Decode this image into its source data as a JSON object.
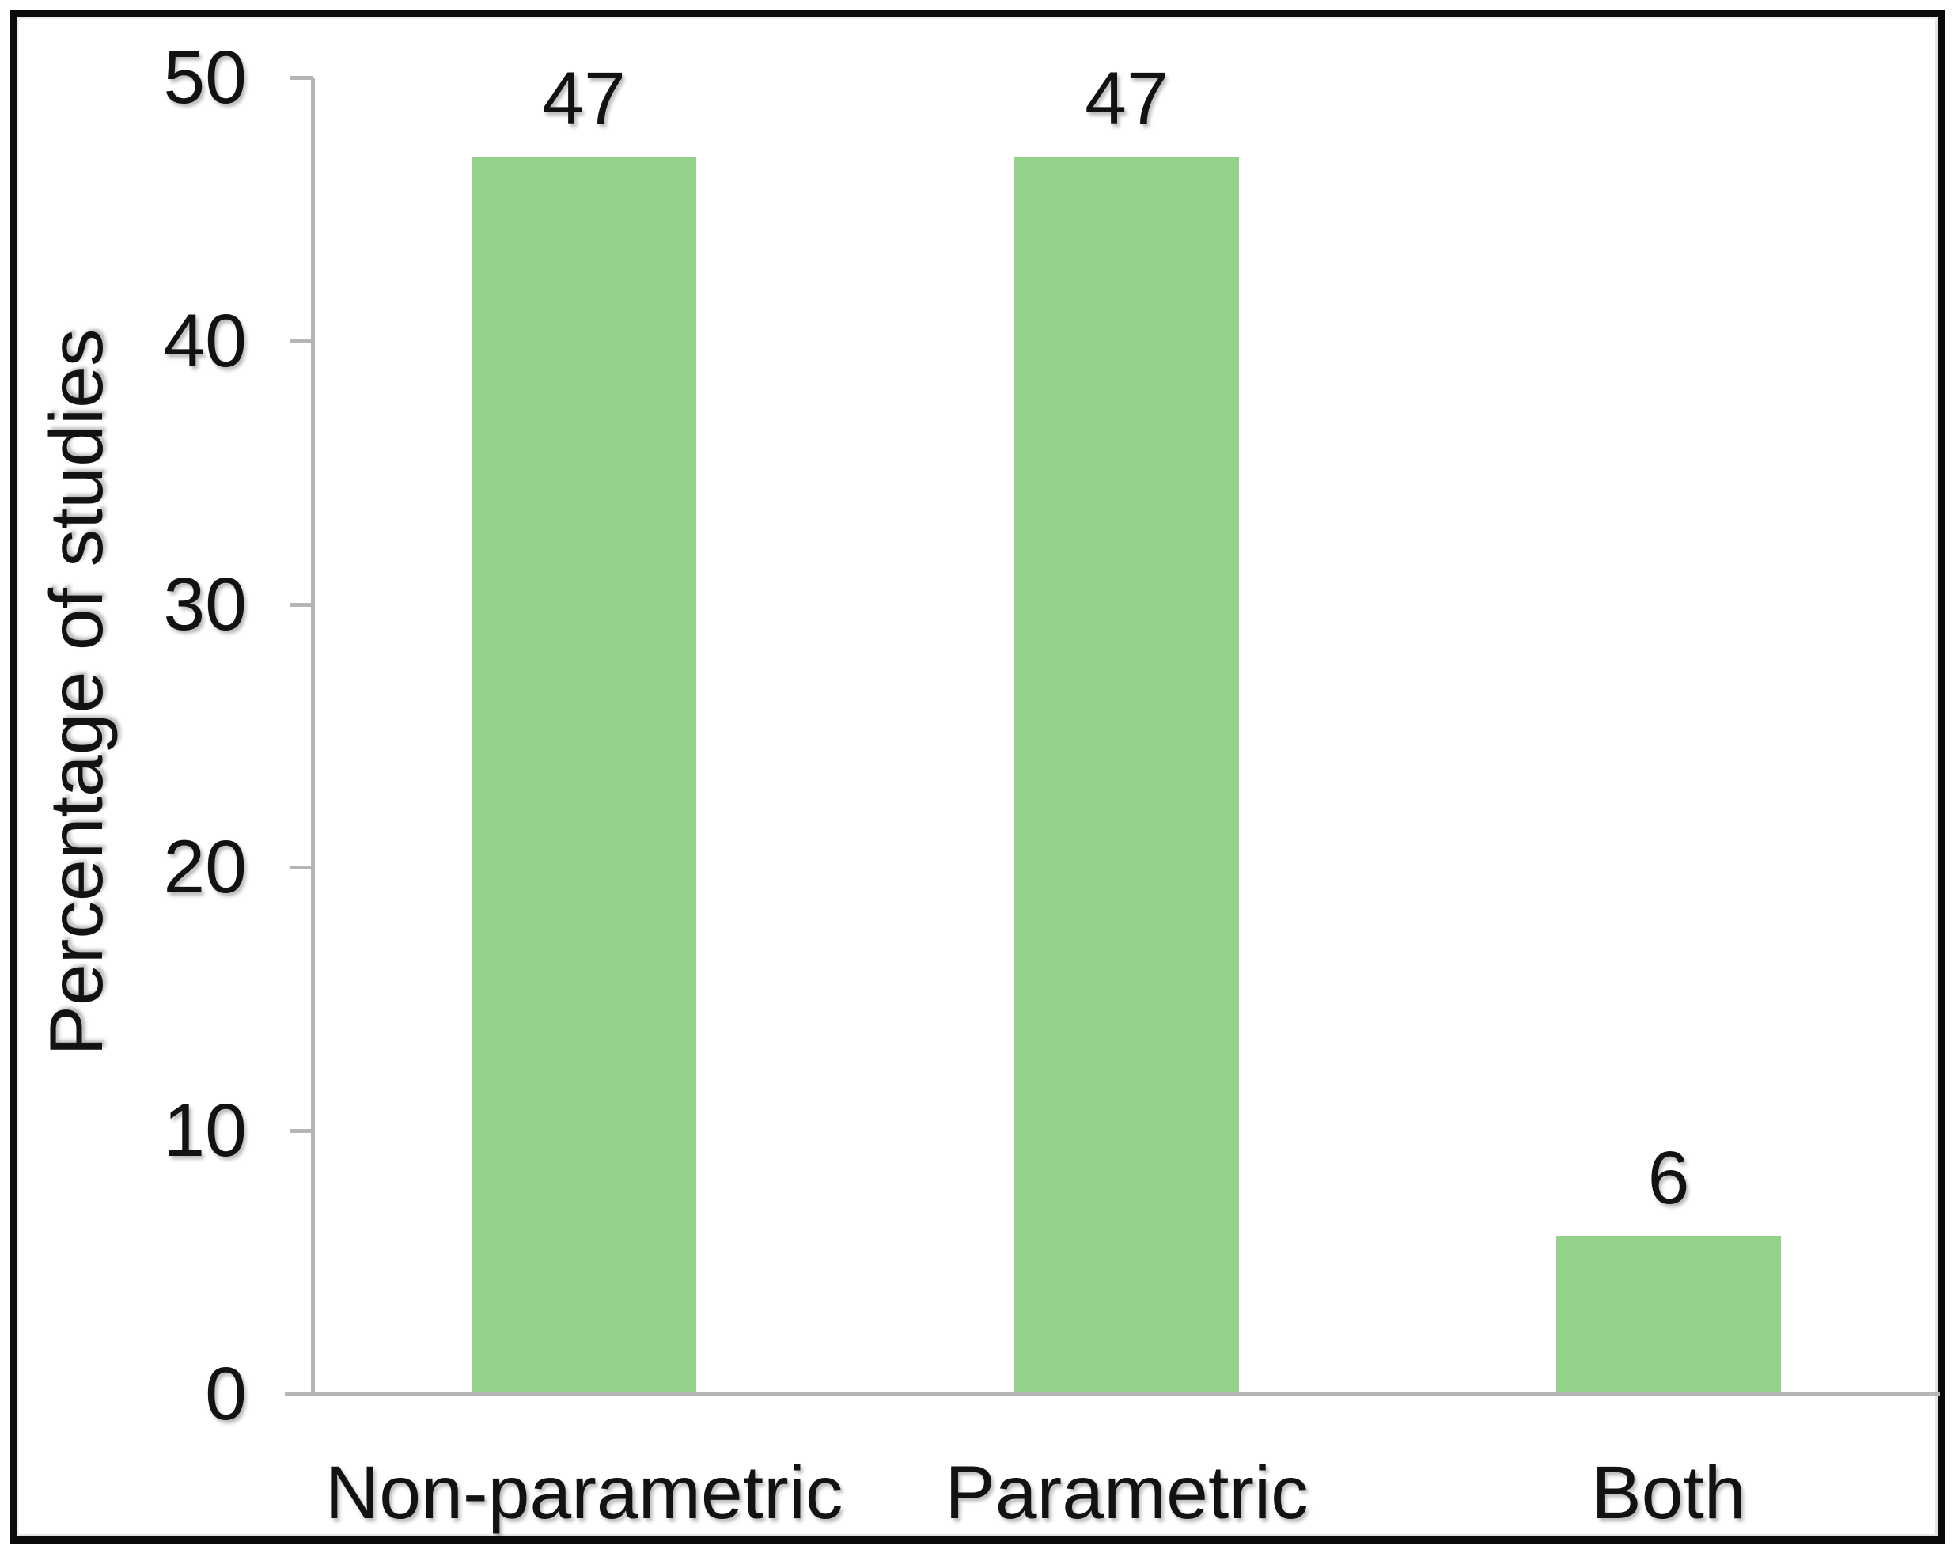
{
  "chart_data": {
    "type": "bar",
    "categories": [
      "Non-parametric",
      "Parametric",
      "Both"
    ],
    "values": [
      47,
      47,
      6
    ],
    "bar_labels": [
      "47",
      "47",
      "6"
    ],
    "ylabel": "Percentage of studies",
    "yticks": [
      0,
      10,
      20,
      30,
      40,
      50
    ],
    "ylim": [
      0,
      50
    ],
    "grid": false,
    "legend": false,
    "bar_color": "#94d18a",
    "axis_color": "#b5b5b5",
    "text_color": "#121212",
    "frame_color": "#0a0a0a",
    "background_color": "#ffffff"
  }
}
